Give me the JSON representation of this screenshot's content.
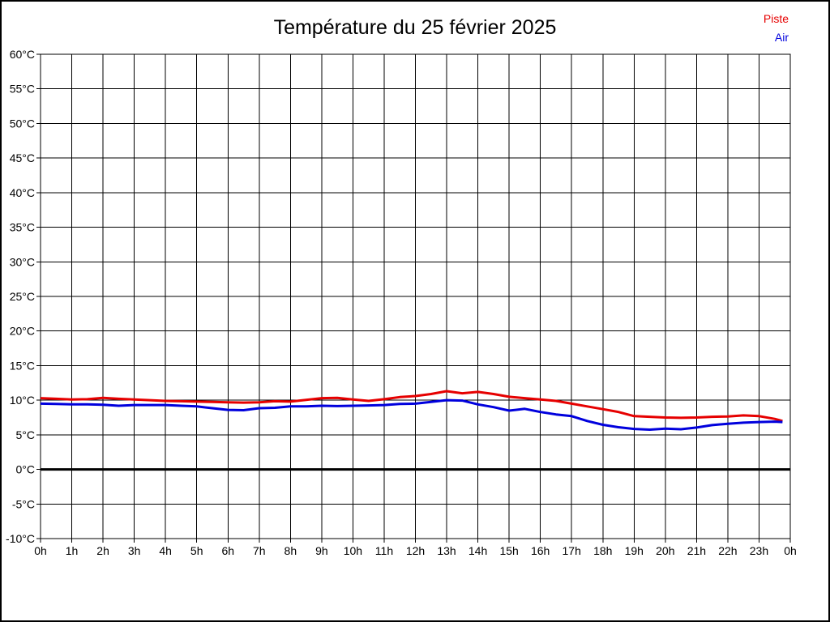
{
  "chart_data": {
    "type": "line",
    "title": "Température du 25 février 2025",
    "xlabel": "",
    "ylabel": "",
    "xlim": [
      0,
      24
    ],
    "ylim": [
      -10,
      60
    ],
    "grid": true,
    "zero_line_bold": true,
    "legend_position": "top-right",
    "y_tick_labels": [
      "60°C",
      "55°C",
      "50°C",
      "45°C",
      "40°C",
      "35°C",
      "30°C",
      "25°C",
      "20°C",
      "15°C",
      "10°C",
      "5°C",
      "0°C",
      "-5°C",
      "-10°C"
    ],
    "y_tick_values": [
      60,
      55,
      50,
      45,
      40,
      35,
      30,
      25,
      20,
      15,
      10,
      5,
      0,
      -5,
      -10
    ],
    "x_tick_labels": [
      "0h",
      "1h",
      "2h",
      "3h",
      "4h",
      "5h",
      "6h",
      "7h",
      "8h",
      "9h",
      "10h",
      "11h",
      "12h",
      "13h",
      "14h",
      "15h",
      "16h",
      "17h",
      "18h",
      "19h",
      "20h",
      "21h",
      "22h",
      "23h",
      "0h"
    ],
    "x_tick_values": [
      0,
      1,
      2,
      3,
      4,
      5,
      6,
      7,
      8,
      9,
      10,
      11,
      12,
      13,
      14,
      15,
      16,
      17,
      18,
      19,
      20,
      21,
      22,
      23,
      24
    ],
    "x_hours": [
      0,
      0.5,
      1,
      1.5,
      2,
      2.5,
      3,
      3.5,
      4,
      4.5,
      5,
      5.5,
      6,
      6.5,
      7,
      7.5,
      8,
      8.5,
      9,
      9.5,
      10,
      10.5,
      11,
      11.5,
      12,
      12.5,
      13,
      13.5,
      14,
      14.5,
      15,
      15.5,
      16,
      16.5,
      17,
      17.5,
      18,
      18.5,
      19,
      19.5,
      20,
      20.5,
      21,
      21.5,
      22,
      22.5,
      23,
      23.5,
      23.75
    ],
    "series": [
      {
        "name": "Piste",
        "color": "#e60000",
        "values": [
          10.3,
          10.2,
          10.1,
          10.15,
          10.35,
          10.2,
          10.1,
          10.0,
          9.9,
          9.85,
          9.8,
          9.75,
          9.7,
          9.65,
          9.7,
          9.85,
          9.8,
          10.05,
          10.3,
          10.35,
          10.1,
          9.9,
          10.15,
          10.45,
          10.6,
          10.9,
          11.3,
          11.0,
          11.2,
          10.9,
          10.5,
          10.3,
          10.1,
          9.9,
          9.5,
          9.1,
          8.7,
          8.3,
          7.7,
          7.6,
          7.5,
          7.45,
          7.5,
          7.6,
          7.65,
          7.8,
          7.7,
          7.3,
          7.0
        ]
      },
      {
        "name": "Air",
        "color": "#0000dd",
        "values": [
          9.5,
          9.45,
          9.4,
          9.4,
          9.35,
          9.2,
          9.3,
          9.3,
          9.3,
          9.2,
          9.1,
          8.85,
          8.6,
          8.55,
          8.85,
          8.9,
          9.1,
          9.1,
          9.2,
          9.15,
          9.2,
          9.25,
          9.3,
          9.45,
          9.5,
          9.75,
          10.0,
          9.95,
          9.4,
          9.0,
          8.5,
          8.75,
          8.3,
          7.95,
          7.7,
          7.0,
          6.45,
          6.1,
          5.85,
          5.75,
          5.9,
          5.8,
          6.05,
          6.4,
          6.6,
          6.75,
          6.85,
          6.9,
          6.85
        ]
      }
    ]
  },
  "legend": [
    {
      "label": "Piste",
      "color": "#e60000"
    },
    {
      "label": "Air",
      "color": "#0000dd"
    }
  ]
}
